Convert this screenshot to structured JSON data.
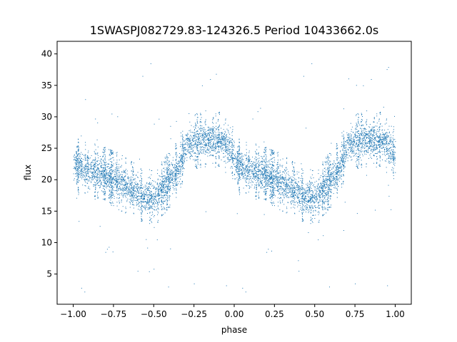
{
  "chart_data": {
    "type": "scatter",
    "title": "1SWASPJ082729.83-124326.5 Period 10433662.0s",
    "xlabel": "phase",
    "ylabel": "flux",
    "xlim": [
      -1.1,
      1.1
    ],
    "ylim": [
      0.2,
      42.0
    ],
    "xticks": [
      -1.0,
      -0.75,
      -0.5,
      -0.25,
      0.0,
      0.25,
      0.5,
      0.75,
      1.0
    ],
    "xtick_labels": [
      "−1.00",
      "−0.75",
      "−0.50",
      "−0.25",
      "0.00",
      "0.25",
      "0.50",
      "0.75",
      "1.00"
    ],
    "yticks": [
      5,
      10,
      15,
      20,
      25,
      30,
      35,
      40
    ],
    "ytick_labels": [
      "5",
      "10",
      "15",
      "20",
      "25",
      "30",
      "35",
      "40"
    ],
    "grid": false,
    "legend": "none",
    "marker_color": "#1f77b4",
    "trend": [
      {
        "x": -1.0,
        "y": 22.5
      },
      {
        "x": -0.9,
        "y": 21.5
      },
      {
        "x": -0.8,
        "y": 20.8
      },
      {
        "x": -0.7,
        "y": 19.5
      },
      {
        "x": -0.6,
        "y": 18.0
      },
      {
        "x": -0.5,
        "y": 17.0
      },
      {
        "x": -0.45,
        "y": 18.5
      },
      {
        "x": -0.35,
        "y": 22.0
      },
      {
        "x": -0.3,
        "y": 25.5
      },
      {
        "x": -0.2,
        "y": 26.5
      },
      {
        "x": -0.1,
        "y": 26.5
      },
      {
        "x": -0.05,
        "y": 25.5
      },
      {
        "x": 0.0,
        "y": 24.0
      },
      {
        "x": 0.1,
        "y": 21.5
      },
      {
        "x": 0.2,
        "y": 20.8
      },
      {
        "x": 0.3,
        "y": 19.5
      },
      {
        "x": 0.4,
        "y": 18.0
      },
      {
        "x": 0.5,
        "y": 17.0
      },
      {
        "x": 0.55,
        "y": 18.5
      },
      {
        "x": 0.65,
        "y": 22.0
      },
      {
        "x": 0.7,
        "y": 25.5
      },
      {
        "x": 0.8,
        "y": 26.5
      },
      {
        "x": 0.9,
        "y": 26.5
      },
      {
        "x": 1.0,
        "y": 25.5
      }
    ],
    "scatter_band": 3.2,
    "outliers": [
      {
        "x": -0.95,
        "y": 2.8
      },
      {
        "x": -0.93,
        "y": 2.2
      },
      {
        "x": -0.8,
        "y": 8.5
      },
      {
        "x": -0.79,
        "y": 9.0
      },
      {
        "x": -0.6,
        "y": 5.5
      },
      {
        "x": -0.57,
        "y": 36.5
      },
      {
        "x": -0.52,
        "y": 38.5
      },
      {
        "x": -0.48,
        "y": 10.5
      },
      {
        "x": -0.41,
        "y": 3.0
      },
      {
        "x": -0.25,
        "y": 3.5
      },
      {
        "x": -0.2,
        "y": 35.0
      },
      {
        "x": -0.15,
        "y": 36.0
      },
      {
        "x": -0.05,
        "y": 3.2
      },
      {
        "x": 0.05,
        "y": 2.8
      },
      {
        "x": 0.07,
        "y": 2.2
      },
      {
        "x": 0.2,
        "y": 8.5
      },
      {
        "x": 0.21,
        "y": 9.0
      },
      {
        "x": 0.4,
        "y": 5.5
      },
      {
        "x": 0.43,
        "y": 36.5
      },
      {
        "x": 0.48,
        "y": 38.5
      },
      {
        "x": 0.52,
        "y": 10.5
      },
      {
        "x": 0.59,
        "y": 3.0
      },
      {
        "x": 0.75,
        "y": 3.5
      },
      {
        "x": 0.8,
        "y": 35.0
      },
      {
        "x": 0.85,
        "y": 36.0
      },
      {
        "x": 0.95,
        "y": 3.2
      }
    ]
  }
}
